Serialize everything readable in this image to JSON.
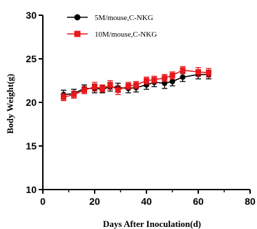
{
  "chart_data": {
    "type": "line",
    "title": "",
    "xlabel": "Days After Inoculation(d)",
    "ylabel": "Body Weight(g)",
    "xlim": [
      0,
      80
    ],
    "ylim": [
      10,
      30
    ],
    "x_ticks": [
      "0",
      "20",
      "40",
      "60",
      "80"
    ],
    "y_ticks": [
      "10",
      "15",
      "20",
      "25",
      "30"
    ],
    "x_tick_values": [
      0,
      20,
      40,
      60,
      80
    ],
    "y_tick_values": [
      10,
      15,
      20,
      25,
      30
    ],
    "grid": false,
    "legend_position": "top-left",
    "series": [
      {
        "name": "5M/mouse,C-NKG",
        "color": "#000000",
        "marker": "circle",
        "points": [
          {
            "x": 8,
            "y": 20.9,
            "err": 0.5
          },
          {
            "x": 12,
            "y": 21.0,
            "err": 0.5
          },
          {
            "x": 16,
            "y": 21.6,
            "err": 0.4
          },
          {
            "x": 20,
            "y": 21.6,
            "err": 0.5
          },
          {
            "x": 23,
            "y": 21.5,
            "err": 0.4
          },
          {
            "x": 26,
            "y": 21.8,
            "err": 0.5
          },
          {
            "x": 29,
            "y": 21.7,
            "err": 0.5
          },
          {
            "x": 33,
            "y": 21.6,
            "err": 0.5
          },
          {
            "x": 36,
            "y": 21.7,
            "err": 0.5
          },
          {
            "x": 40,
            "y": 22.0,
            "err": 0.5
          },
          {
            "x": 43,
            "y": 22.3,
            "err": 0.5
          },
          {
            "x": 47,
            "y": 22.2,
            "err": 0.6
          },
          {
            "x": 50,
            "y": 22.4,
            "err": 0.5
          },
          {
            "x": 54,
            "y": 22.9,
            "err": 0.5
          },
          {
            "x": 60,
            "y": 23.2,
            "err": 0.5
          },
          {
            "x": 64,
            "y": 23.2,
            "err": 0.5
          }
        ]
      },
      {
        "name": "10M/mouse,C-NKG",
        "color": "#e8191b",
        "marker": "square",
        "points": [
          {
            "x": 8,
            "y": 20.6,
            "err": 0.4
          },
          {
            "x": 12,
            "y": 20.9,
            "err": 0.4
          },
          {
            "x": 16,
            "y": 21.4,
            "err": 0.4
          },
          {
            "x": 20,
            "y": 21.8,
            "err": 0.5
          },
          {
            "x": 23,
            "y": 21.6,
            "err": 0.4
          },
          {
            "x": 26,
            "y": 22.0,
            "err": 0.5
          },
          {
            "x": 29,
            "y": 21.4,
            "err": 0.5
          },
          {
            "x": 33,
            "y": 21.9,
            "err": 0.4
          },
          {
            "x": 36,
            "y": 22.0,
            "err": 0.4
          },
          {
            "x": 40,
            "y": 22.5,
            "err": 0.4
          },
          {
            "x": 43,
            "y": 22.6,
            "err": 0.4
          },
          {
            "x": 47,
            "y": 22.8,
            "err": 0.4
          },
          {
            "x": 50,
            "y": 23.1,
            "err": 0.4
          },
          {
            "x": 54,
            "y": 23.7,
            "err": 0.4
          },
          {
            "x": 60,
            "y": 23.5,
            "err": 0.5
          },
          {
            "x": 64,
            "y": 23.4,
            "err": 0.5
          }
        ]
      }
    ]
  }
}
